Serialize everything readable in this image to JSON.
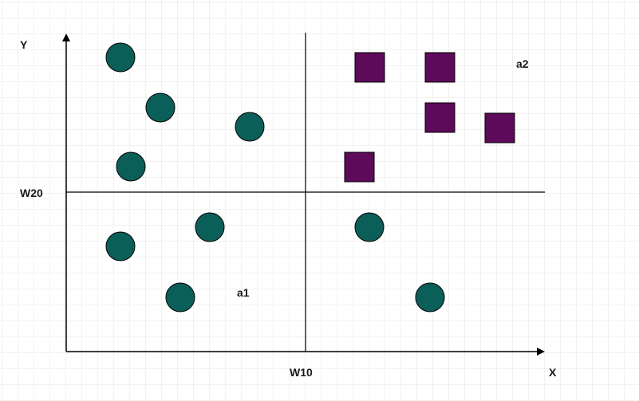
{
  "labels": {
    "y_axis": "Y",
    "x_axis": "X",
    "w20": "W20",
    "w10": "W10",
    "a1": "a1",
    "a2": "a2"
  },
  "colors": {
    "background": "#ffffff",
    "grid": "#e6e6e6",
    "axis": "#000000",
    "circle_fill": "#0b5f59",
    "square_fill": "#5e0a5a",
    "marker_stroke": "#000000"
  },
  "markers": {
    "circle": "circle-marker",
    "square": "square-marker"
  }
}
